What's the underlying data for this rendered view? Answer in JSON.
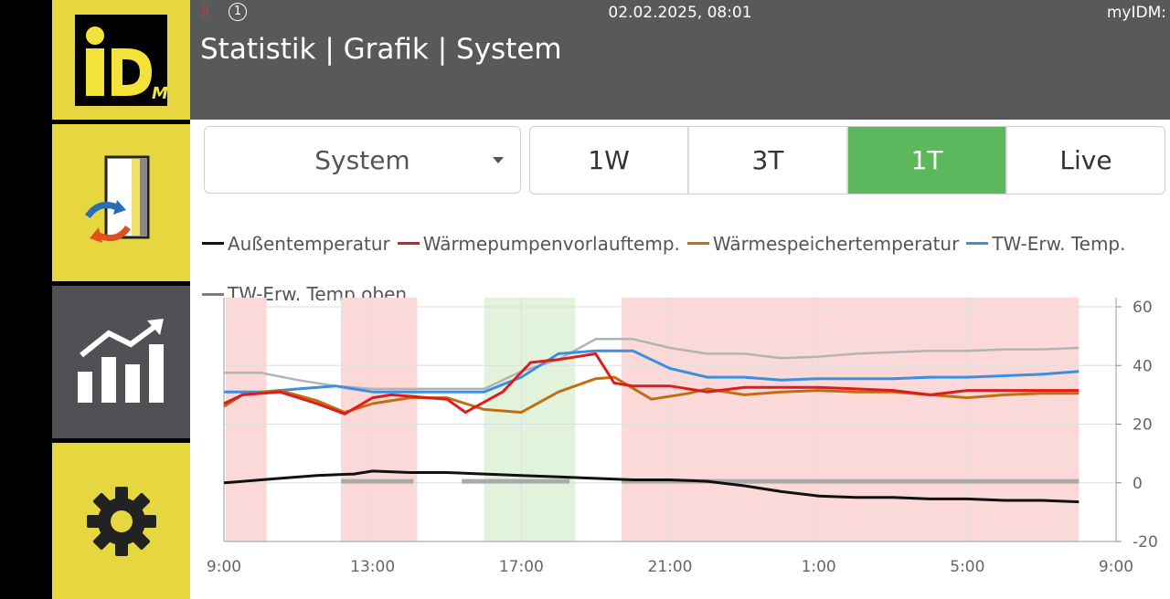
{
  "header": {
    "heating_icon_glyph": "⸾⸾",
    "badge_number": "1",
    "datetime": "02.02.2025, 08:01",
    "brand": "myIDM:",
    "title": "Statistik | Grafik | System"
  },
  "logo": {
    "text": "iD",
    "sub": "M"
  },
  "sidebar": {
    "items": [
      {
        "icon": "heat-pump-exchange-icon"
      },
      {
        "icon": "statistics-chart-icon"
      },
      {
        "icon": "gear-icon"
      }
    ]
  },
  "controls": {
    "select_value": "System",
    "ranges": [
      {
        "label": "1W",
        "active": false
      },
      {
        "label": "3T",
        "active": false
      },
      {
        "label": "1T",
        "active": true
      },
      {
        "label": "Live",
        "active": false
      }
    ]
  },
  "chart_data": {
    "type": "line",
    "x_ticks": [
      "9:00",
      "13:00",
      "17:00",
      "21:00",
      "1:00",
      "5:00",
      "9:00"
    ],
    "y_ticks": [
      "60",
      "40",
      "20",
      "0",
      "-20"
    ],
    "ylim": [
      -20,
      60
    ],
    "x_unit": "hours after 9:00",
    "xlim": [
      0,
      24
    ],
    "grid": true,
    "legend_position": "top",
    "shaded_bands": [
      {
        "from": 0.05,
        "to": 1.15,
        "color": "#fbd9d9"
      },
      {
        "from": 3.15,
        "to": 5.2,
        "color": "#fbd9d9"
      },
      {
        "from": 7.0,
        "to": 9.45,
        "color": "#e2f3dc"
      },
      {
        "from": 10.7,
        "to": 23.0,
        "color": "#fbd9d9"
      }
    ],
    "series": [
      {
        "name": "Außentemperatur",
        "color": "#111111",
        "x": [
          0,
          1,
          1.5,
          2.5,
          3.5,
          4,
          5,
          6,
          7,
          8,
          9,
          10,
          11,
          12,
          13,
          14,
          15,
          16,
          17,
          18,
          19,
          20,
          21,
          22,
          23
        ],
        "y": [
          0,
          1,
          1.5,
          2.5,
          3,
          4,
          3.5,
          3.5,
          3,
          2.5,
          2,
          1.5,
          1,
          1,
          0.5,
          -1,
          -3,
          -4.5,
          -5,
          -5,
          -5.5,
          -5.5,
          -6,
          -6,
          -6.5
        ]
      },
      {
        "name": "Wärmepumpenvorlauftemp.",
        "color": "#dd1c1c",
        "x": [
          0,
          0.5,
          1.5,
          2.5,
          3.25,
          4,
          4.5,
          6,
          6.5,
          7.5,
          8.25,
          9,
          10,
          10.5,
          11,
          12,
          13,
          14,
          15,
          16,
          17,
          18,
          19,
          20,
          21,
          22,
          23
        ],
        "y": [
          27,
          30,
          31,
          27,
          23.5,
          29,
          30,
          28.5,
          24,
          31,
          41,
          42,
          44,
          34,
          33,
          33,
          31,
          32.5,
          32.5,
          32.5,
          32,
          31.5,
          30,
          31.5,
          31.5,
          31.5,
          31.5
        ]
      },
      {
        "name": "Wärmespeichertemperatur",
        "color": "#c36d12",
        "x": [
          0,
          0.5,
          1.5,
          2.5,
          3.25,
          4,
          5,
          6,
          7,
          8,
          9,
          10,
          10.5,
          11.5,
          12.5,
          13,
          14,
          15,
          16,
          17,
          18,
          19,
          20,
          21,
          22,
          23
        ],
        "y": [
          26,
          30,
          31.5,
          28,
          24,
          27,
          29,
          29,
          25,
          24,
          31,
          35.5,
          36,
          28.5,
          30.5,
          32,
          30,
          31,
          31.5,
          31,
          31,
          30,
          29,
          30,
          30.5,
          30.5
        ]
      },
      {
        "name": "TW-Erw. Temp.",
        "color": "#3b8fe0",
        "x": [
          0,
          1,
          2,
          3,
          4,
          5,
          6,
          7,
          8,
          9,
          10,
          11,
          12,
          13,
          14,
          15,
          16,
          17,
          18,
          19,
          20,
          21,
          22,
          23
        ],
        "y": [
          31,
          31,
          32,
          33,
          31,
          31,
          31,
          31,
          36,
          44,
          45,
          45,
          39,
          36,
          36,
          35,
          35.5,
          35.5,
          35.5,
          36,
          36,
          36.5,
          37,
          38
        ]
      },
      {
        "name": "TW-Erw. Temp.oben",
        "color": "#7d7d7d",
        "x": [
          0,
          1,
          2,
          3,
          4,
          5,
          6,
          7,
          8,
          9,
          10,
          11,
          12,
          13,
          14,
          15,
          16,
          17,
          18,
          19,
          20,
          21,
          22,
          23
        ],
        "y": [
          37.5,
          37.5,
          35,
          33,
          32,
          32,
          32,
          32,
          38,
          42,
          49,
          49,
          46,
          44,
          44,
          42.5,
          43,
          44,
          44.5,
          45,
          45,
          45.5,
          45.5,
          46
        ]
      }
    ],
    "gray_segments": [
      {
        "from": 3.15,
        "to": 5.1,
        "y": 0.5
      },
      {
        "from": 6.4,
        "to": 9.3,
        "y": 0.5
      },
      {
        "from": 10.7,
        "to": 23.0,
        "y": 0.5
      }
    ]
  }
}
